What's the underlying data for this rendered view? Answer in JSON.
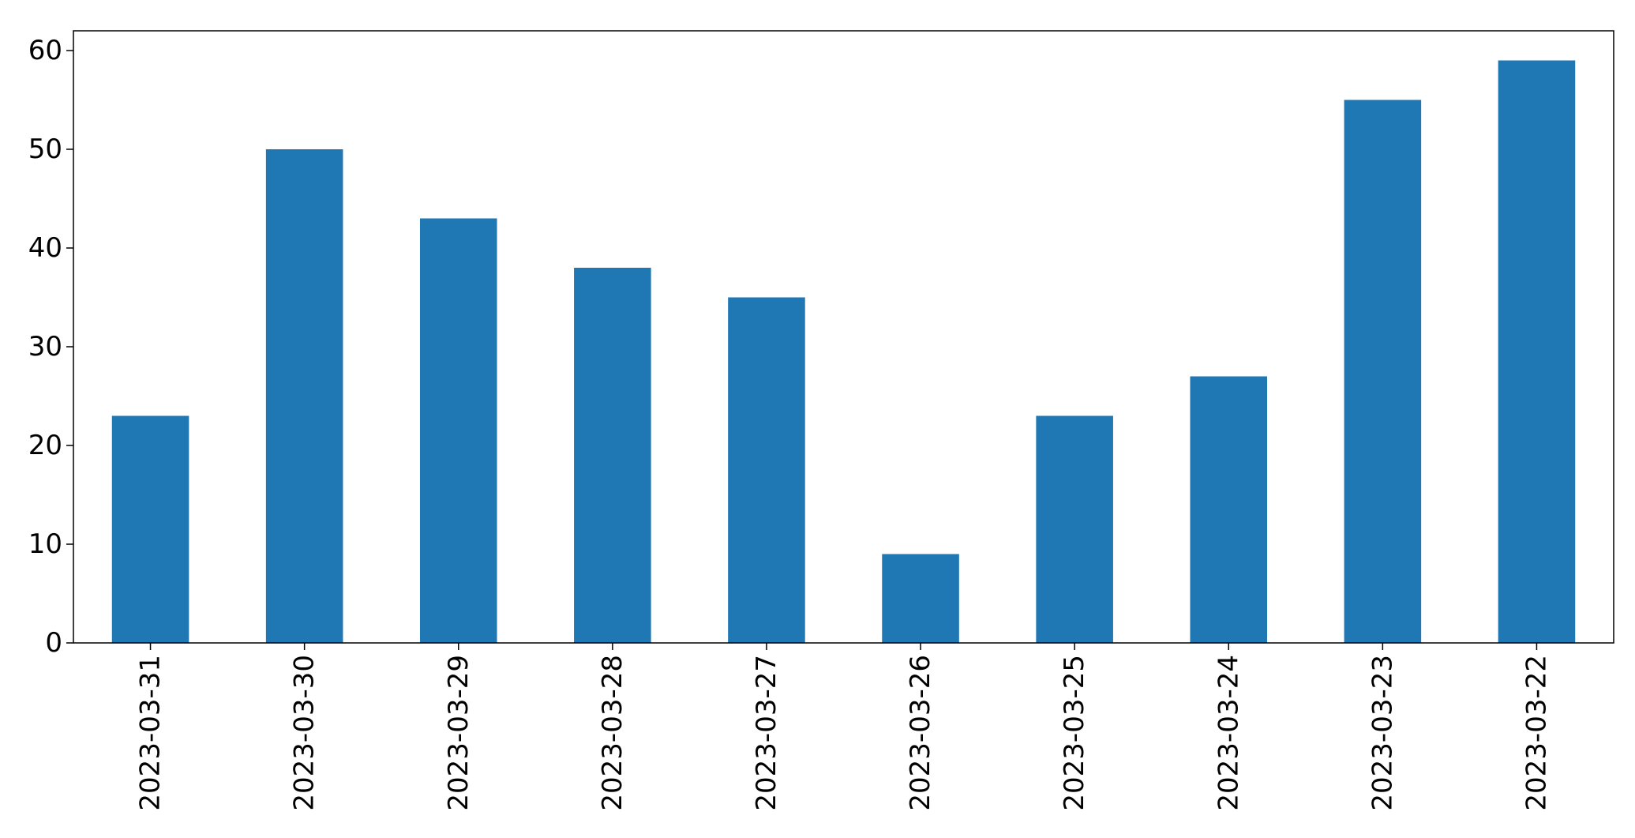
{
  "chart_data": {
    "type": "bar",
    "categories": [
      "2023-03-31",
      "2023-03-30",
      "2023-03-29",
      "2023-03-28",
      "2023-03-27",
      "2023-03-26",
      "2023-03-25",
      "2023-03-24",
      "2023-03-23",
      "2023-03-22"
    ],
    "values": [
      23,
      50,
      43,
      38,
      35,
      9,
      23,
      27,
      55,
      59
    ],
    "title": "",
    "xlabel": "",
    "ylabel": "",
    "ylim": [
      0,
      62
    ],
    "yticks": [
      0,
      10,
      20,
      30,
      40,
      50,
      60
    ],
    "grid": false,
    "bar_color": "#1f77b4"
  }
}
